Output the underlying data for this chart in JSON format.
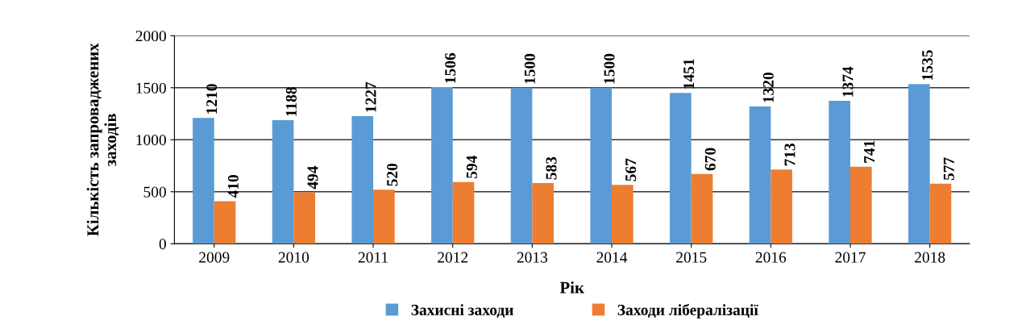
{
  "chart_data": {
    "type": "bar",
    "xlabel": "Рік",
    "ylabel": "Кількість запроваджених\nзаходів",
    "categories": [
      "2009",
      "2010",
      "2011",
      "2012",
      "2013",
      "2014",
      "2015",
      "2016",
      "2017",
      "2018"
    ],
    "series": [
      {
        "name": "Захисні заходи",
        "color": "#5b9bd5",
        "values": [
          1210,
          1188,
          1227,
          1506,
          1500,
          1500,
          1451,
          1320,
          1374,
          1535
        ]
      },
      {
        "name": "Заходи лібералізації",
        "color": "#ed7d31",
        "values": [
          410,
          494,
          520,
          594,
          583,
          567,
          670,
          713,
          741,
          577
        ]
      }
    ],
    "ylim": [
      0,
      2000
    ],
    "yticks": [
      0,
      500,
      1000,
      1500,
      2000
    ],
    "grid": "y",
    "legend": "bottom",
    "data_labels": true
  }
}
